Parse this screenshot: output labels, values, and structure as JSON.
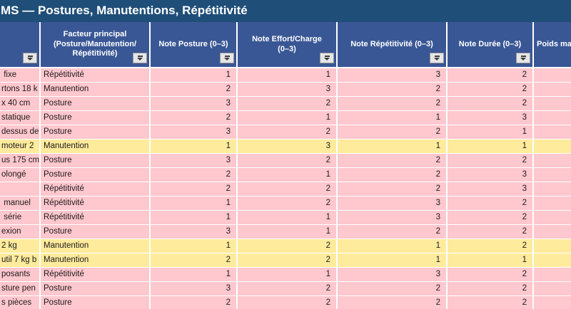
{
  "title": "MS — Postures, Manutentions, Répétitivité",
  "colors": {
    "title_bar": "#1F4E78",
    "header_bg": "#3A5795",
    "row_pink": "#FFC7CE",
    "row_yellow": "#FFEB9C",
    "gridline": "#FFFFFF",
    "header_text": "#FFFFFF",
    "cell_text": "#1A1A1A"
  },
  "table": {
    "columns": [
      {
        "label": "",
        "filter": true
      },
      {
        "label": "Facteur principal\n(Posture/Manutention/\nRépétitivité)",
        "filter": true
      },
      {
        "label": "Note Posture (0–3)",
        "filter": true
      },
      {
        "label": "Note Effort/Charge\n(0–3)",
        "filter": true
      },
      {
        "label": "Note Répétitivité (0–3)",
        "filter": true
      },
      {
        "label": "Note Durée (0–3)",
        "filter": true
      },
      {
        "label": "Poids ma",
        "filter": false
      }
    ],
    "rows": [
      {
        "task": " fixe",
        "facteur": "Répétitivité",
        "note_posture": 1,
        "note_effort": 1,
        "note_repetitivite": 3,
        "note_duree": 2,
        "poids": "",
        "color": "pink"
      },
      {
        "task": "rtons 18 k",
        "facteur": "Manutention",
        "note_posture": 2,
        "note_effort": 3,
        "note_repetitivite": 2,
        "note_duree": 2,
        "poids": "",
        "color": "pink"
      },
      {
        "task": "x 40 cm",
        "facteur": "Posture",
        "note_posture": 3,
        "note_effort": 2,
        "note_repetitivite": 2,
        "note_duree": 2,
        "poids": "",
        "color": "pink"
      },
      {
        "task": "statique",
        "facteur": "Posture",
        "note_posture": 2,
        "note_effort": 1,
        "note_repetitivite": 1,
        "note_duree": 3,
        "poids": "",
        "color": "pink"
      },
      {
        "task": "dessus de",
        "facteur": "Posture",
        "note_posture": 3,
        "note_effort": 2,
        "note_repetitivite": 2,
        "note_duree": 1,
        "poids": "",
        "color": "pink"
      },
      {
        "task": "moteur 2",
        "facteur": "Manutention",
        "note_posture": 1,
        "note_effort": 3,
        "note_repetitivite": 1,
        "note_duree": 1,
        "poids": "",
        "color": "yellow"
      },
      {
        "task": "us 175 cm",
        "facteur": "Posture",
        "note_posture": 3,
        "note_effort": 2,
        "note_repetitivite": 2,
        "note_duree": 2,
        "poids": "",
        "color": "pink"
      },
      {
        "task": "olongé",
        "facteur": "Posture",
        "note_posture": 2,
        "note_effort": 1,
        "note_repetitivite": 2,
        "note_duree": 3,
        "poids": "",
        "color": "pink"
      },
      {
        "task": "",
        "facteur": "Répétitivité",
        "note_posture": 2,
        "note_effort": 2,
        "note_repetitivite": 2,
        "note_duree": 3,
        "poids": "",
        "color": "pink"
      },
      {
        "task": " manuel",
        "facteur": "Répétitivité",
        "note_posture": 1,
        "note_effort": 2,
        "note_repetitivite": 3,
        "note_duree": 2,
        "poids": "",
        "color": "pink"
      },
      {
        "task": " série",
        "facteur": "Répétitivité",
        "note_posture": 1,
        "note_effort": 1,
        "note_repetitivite": 3,
        "note_duree": 2,
        "poids": "",
        "color": "pink"
      },
      {
        "task": "exion",
        "facteur": "Posture",
        "note_posture": 3,
        "note_effort": 1,
        "note_repetitivite": 2,
        "note_duree": 2,
        "poids": "",
        "color": "pink"
      },
      {
        "task": "2 kg",
        "facteur": "Manutention",
        "note_posture": 1,
        "note_effort": 2,
        "note_repetitivite": 1,
        "note_duree": 2,
        "poids": "",
        "color": "yellow"
      },
      {
        "task": "util 7 kg b",
        "facteur": "Manutention",
        "note_posture": 2,
        "note_effort": 2,
        "note_repetitivite": 1,
        "note_duree": 1,
        "poids": "",
        "color": "yellow"
      },
      {
        "task": "posants",
        "facteur": "Répétitivité",
        "note_posture": 1,
        "note_effort": 1,
        "note_repetitivite": 3,
        "note_duree": 2,
        "poids": "",
        "color": "pink"
      },
      {
        "task": "sture pen",
        "facteur": "Posture",
        "note_posture": 3,
        "note_effort": 2,
        "note_repetitivite": 2,
        "note_duree": 2,
        "poids": "",
        "color": "pink"
      },
      {
        "task": "s pièces",
        "facteur": "Posture",
        "note_posture": 2,
        "note_effort": 2,
        "note_repetitivite": 2,
        "note_duree": 2,
        "poids": "",
        "color": "pink"
      }
    ]
  }
}
